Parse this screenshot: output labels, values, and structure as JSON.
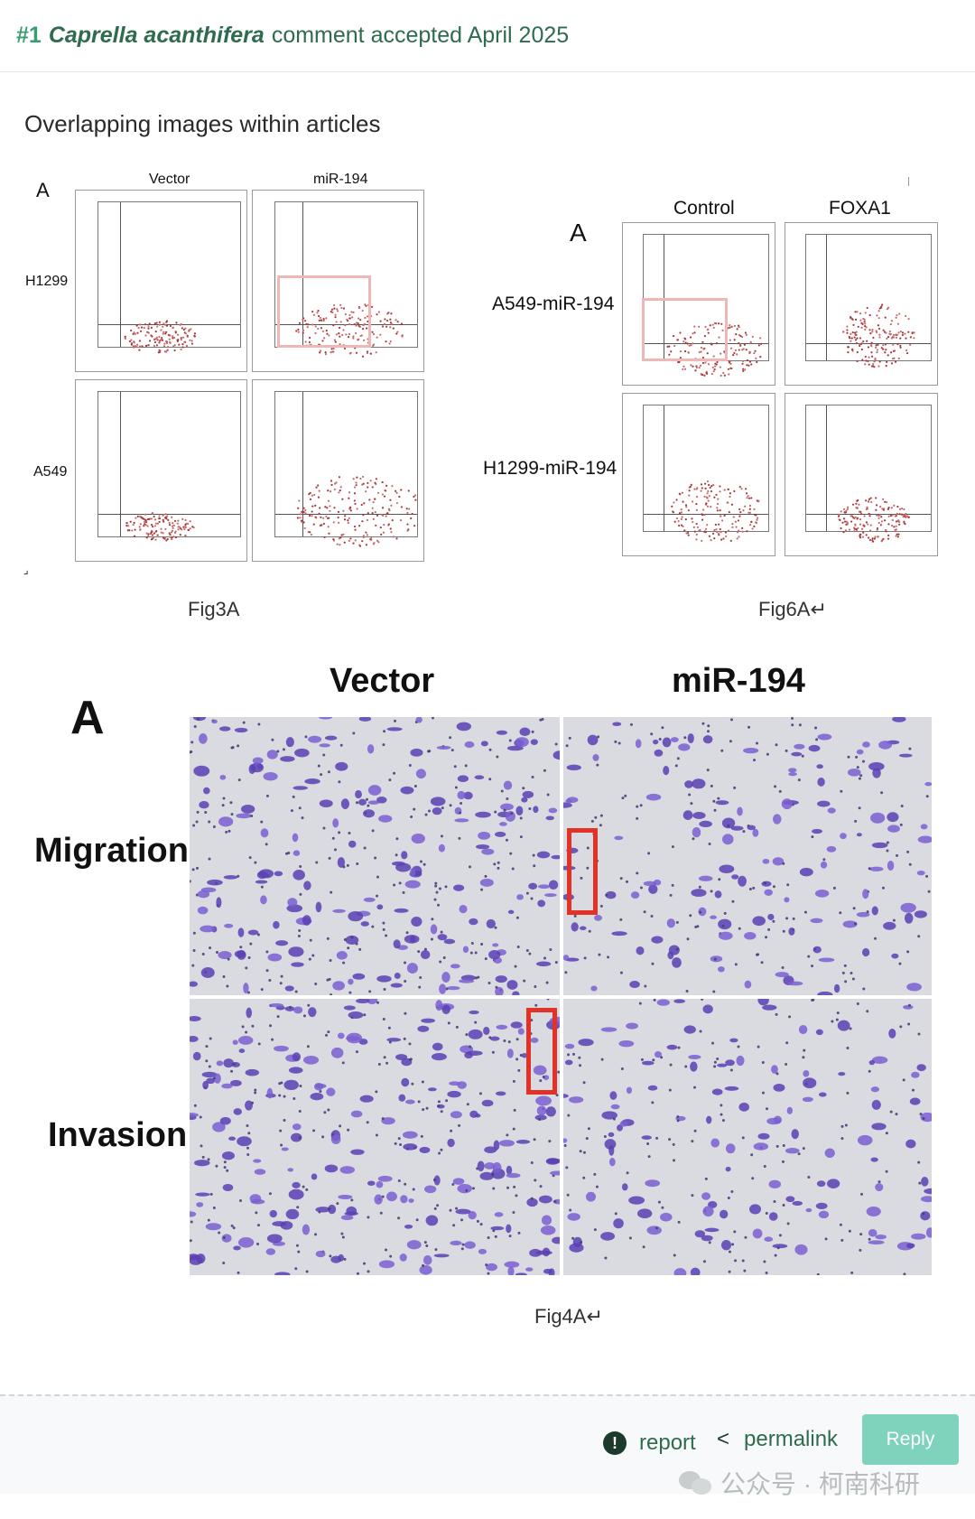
{
  "header": {
    "number": "#1",
    "author": "Caprella acanthifera",
    "meta": "comment accepted April 2025"
  },
  "comment": {
    "text": "Overlapping images within articles"
  },
  "fig3a": {
    "panel_letter": "A",
    "columns": [
      "Vector",
      "miR-194"
    ],
    "rows": [
      "H1299",
      "A549"
    ],
    "caption": "Fig3A",
    "corner_mark": "⌟"
  },
  "fig6a": {
    "panel_letter": "A",
    "columns": [
      "Control",
      "FOXA1"
    ],
    "rows": [
      "A549-miR-194",
      "H1299-miR-194"
    ],
    "caption": "Fig6A↵"
  },
  "fig4a": {
    "panel_letter": "A",
    "columns": [
      "Vector",
      "miR-194"
    ],
    "rows": [
      "Migration",
      "Invasion"
    ],
    "caption": "Fig4A↵"
  },
  "footer": {
    "report_label": "report",
    "permalink_label": "permalink",
    "reply_label": "Reply",
    "report_icon": "alert-circle-icon",
    "permalink_icon": "share-icon"
  },
  "watermark": {
    "text": "公众号 · 柯南科研"
  },
  "colors": {
    "accent_green": "#3a9d6e",
    "reply_button": "#7fd2bb",
    "highlight_red": "#e23127",
    "highlight_pink": "#f0b7b7"
  }
}
